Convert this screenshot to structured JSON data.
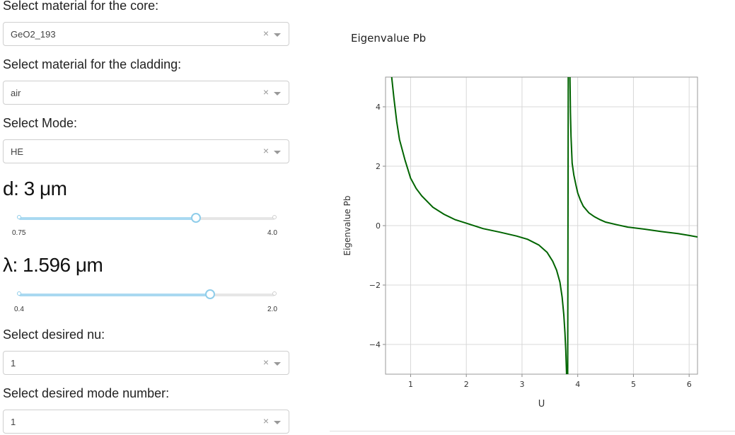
{
  "controls": {
    "core_label": "Select material for the core:",
    "core_value": "GeO2_193",
    "cladding_label": "Select material for the cladding:",
    "cladding_value": "air",
    "mode_label": "Select Mode:",
    "mode_value": "HE",
    "clear_glyph": "×",
    "d_slider": {
      "title": "d: 3 μm",
      "min_label": "0.75",
      "max_label": "4.0",
      "min": 0.75,
      "max": 4.0,
      "value": 3.0
    },
    "lambda_slider": {
      "title": "λ: 1.596 μm",
      "min_label": "0.4",
      "max_label": "2.0",
      "min": 0.4,
      "max": 2.0,
      "value": 1.596
    },
    "nu_label": "Select desired nu:",
    "nu_value": "1",
    "mode_number_label": "Select desired mode number:",
    "mode_number_value": "1"
  },
  "chart_data": {
    "type": "line",
    "title": "Eigenvalue Pb",
    "xlabel": "U",
    "ylabel": "Eigenvalue Pb",
    "xlim": [
      0.55,
      6.15
    ],
    "ylim": [
      -5,
      5
    ],
    "xticks": [
      "1",
      "2",
      "3",
      "4",
      "5",
      "6"
    ],
    "yticks": [
      "−4",
      "−2",
      "0",
      "2",
      "4"
    ],
    "grid": true,
    "line_color": "#006400",
    "series": [
      {
        "x": [
          0.66,
          0.7,
          0.75,
          0.8,
          0.9,
          1.0,
          1.1,
          1.2,
          1.4,
          1.6,
          1.8,
          2.0,
          2.3,
          2.6,
          2.9,
          3.1,
          3.3,
          3.45,
          3.55,
          3.62,
          3.68,
          3.72,
          3.75,
          3.77,
          3.785,
          3.8
        ],
        "y": [
          5.0,
          4.3,
          3.5,
          2.9,
          2.2,
          1.6,
          1.25,
          1.0,
          0.62,
          0.38,
          0.2,
          0.08,
          -0.1,
          -0.22,
          -0.35,
          -0.46,
          -0.65,
          -0.9,
          -1.2,
          -1.5,
          -1.9,
          -2.4,
          -3.0,
          -3.6,
          -4.2,
          -5.0
        ]
      },
      {
        "x": [
          3.82,
          3.83
        ],
        "y": [
          -5.0,
          5.0
        ]
      },
      {
        "x": [
          3.86,
          3.87,
          3.88,
          3.9,
          3.93,
          3.97,
          4.0,
          4.05,
          4.1,
          4.2,
          4.3,
          4.4,
          4.5,
          4.7,
          4.9,
          5.2,
          5.5,
          5.8,
          6.0,
          6.15
        ],
        "y": [
          5.0,
          3.8,
          3.0,
          2.1,
          1.7,
          1.35,
          1.1,
          0.85,
          0.65,
          0.43,
          0.3,
          0.2,
          0.12,
          0.03,
          -0.05,
          -0.12,
          -0.2,
          -0.27,
          -0.33,
          -0.38
        ]
      }
    ]
  }
}
